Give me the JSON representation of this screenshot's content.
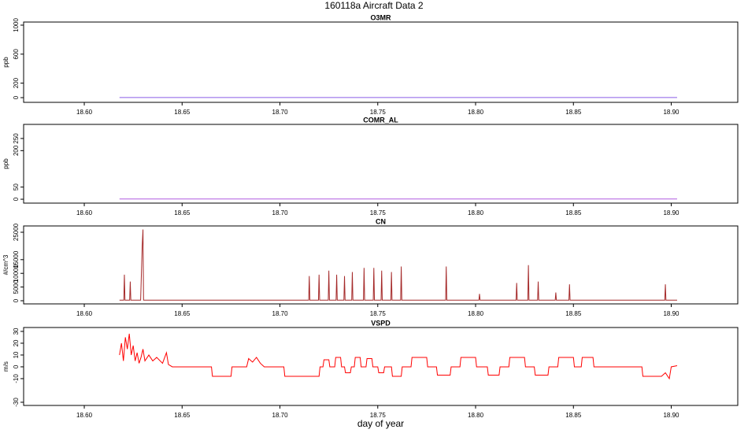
{
  "title": "160118a   Aircraft Data 2",
  "chart_data": [
    {
      "type": "line",
      "title": "O3MR",
      "ylabel": "ppb",
      "color": "#8a5ce6",
      "xlim": [
        18.569,
        18.934
      ],
      "xticks": [
        {
          "value": 18.6,
          "label": "18.60"
        },
        18.65,
        {
          "value": 18.7,
          "label": "18.70"
        },
        18.75,
        {
          "value": 18.8,
          "label": "18.80"
        },
        18.85,
        {
          "value": 18.9,
          "label": "18.90"
        }
      ],
      "ylim": [
        -65,
        1043
      ],
      "yticks": [
        0,
        200,
        600,
        1000
      ],
      "x": [
        18.618,
        18.903
      ],
      "values": [
        2,
        2
      ]
    },
    {
      "type": "line",
      "title": "COMR_AL",
      "ylabel": "ppb",
      "color": "#b05ce0",
      "xlim": [
        18.569,
        18.934
      ],
      "xticks": [
        {
          "value": 18.6,
          "label": "18.60"
        },
        18.65,
        {
          "value": 18.7,
          "label": "18.70"
        },
        18.75,
        {
          "value": 18.8,
          "label": "18.80"
        },
        18.85,
        {
          "value": 18.9,
          "label": "18.90"
        }
      ],
      "ylim": [
        -16,
        308
      ],
      "yticks": [
        0,
        50,
        200,
        250
      ],
      "x": [
        18.618,
        18.903
      ],
      "values": [
        1,
        1
      ]
    },
    {
      "type": "line",
      "title": "CN",
      "ylabel": "#/cm^3",
      "color": "#a52a2a",
      "xlim": [
        18.569,
        18.934
      ],
      "xticks": [
        {
          "value": 18.6,
          "label": "18.60"
        },
        18.65,
        {
          "value": 18.7,
          "label": "18.70"
        },
        18.75,
        {
          "value": 18.8,
          "label": "18.80"
        },
        18.85,
        {
          "value": 18.9,
          "label": "18.90"
        }
      ],
      "ylim": [
        -1150,
        27300
      ],
      "yticks": [
        0,
        5000,
        10000,
        15000,
        25000
      ],
      "x": [
        18.618,
        18.6202,
        18.6205,
        18.6208,
        18.6232,
        18.6235,
        18.6238,
        18.6288,
        18.6292,
        18.6296,
        18.63,
        18.6303,
        18.7147,
        18.715,
        18.7153,
        18.7197,
        18.72,
        18.7203,
        18.7247,
        18.725,
        18.7253,
        18.7287,
        18.729,
        18.7293,
        18.7327,
        18.733,
        18.7333,
        18.7367,
        18.737,
        18.7373,
        18.7427,
        18.743,
        18.7433,
        18.7477,
        18.748,
        18.7483,
        18.7517,
        18.752,
        18.7523,
        18.7567,
        18.757,
        18.7573,
        18.7617,
        18.762,
        18.7623,
        18.7847,
        18.785,
        18.7853,
        18.8017,
        18.802,
        18.8023,
        18.8207,
        18.821,
        18.8213,
        18.8267,
        18.827,
        18.8273,
        18.8317,
        18.832,
        18.8323,
        18.8407,
        18.841,
        18.8413,
        18.8477,
        18.848,
        18.8483,
        18.8967,
        18.897,
        18.8973,
        18.903
      ],
      "values": [
        200,
        200,
        9500,
        200,
        200,
        7000,
        200,
        200,
        10000,
        20000,
        26000,
        200,
        200,
        9000,
        200,
        200,
        9500,
        200,
        200,
        11000,
        200,
        200,
        9500,
        200,
        200,
        9000,
        200,
        200,
        10500,
        200,
        200,
        12000,
        200,
        200,
        12000,
        200,
        200,
        11000,
        200,
        200,
        10500,
        200,
        200,
        12500,
        200,
        200,
        12500,
        200,
        200,
        2500,
        200,
        200,
        6500,
        200,
        200,
        13000,
        200,
        200,
        7000,
        200,
        200,
        3000,
        200,
        200,
        6000,
        200,
        200,
        6000,
        200,
        200
      ]
    },
    {
      "type": "line",
      "title": "VSPD",
      "ylabel": "m/s",
      "xlabel": "day of year",
      "color": "#ff0000",
      "xlim": [
        18.569,
        18.934
      ],
      "xticks": [
        {
          "value": 18.6,
          "label": "18.60"
        },
        18.65,
        {
          "value": 18.7,
          "label": "18.70"
        },
        18.75,
        {
          "value": 18.8,
          "label": "18.80"
        },
        18.85,
        {
          "value": 18.9,
          "label": "18.90"
        }
      ],
      "ylim": [
        -32.7,
        33.3
      ],
      "yticks": [
        -30,
        -10,
        0,
        10,
        20,
        30
      ],
      "x": [
        18.618,
        18.619,
        18.62,
        18.621,
        18.622,
        18.623,
        18.624,
        18.625,
        18.626,
        18.627,
        18.628,
        18.629,
        18.63,
        18.631,
        18.633,
        18.635,
        18.637,
        18.64,
        18.642,
        18.643,
        18.645,
        18.665,
        18.6655,
        18.675,
        18.6755,
        18.683,
        18.684,
        18.686,
        18.688,
        18.69,
        18.692,
        18.702,
        18.7025,
        18.72,
        18.7205,
        18.722,
        18.7225,
        18.725,
        18.7255,
        18.728,
        18.7285,
        18.731,
        18.7315,
        18.733,
        18.7335,
        18.736,
        18.7365,
        18.738,
        18.7385,
        18.741,
        18.7415,
        18.744,
        18.7445,
        18.747,
        18.7475,
        18.75,
        18.7505,
        18.753,
        18.7535,
        18.757,
        18.7575,
        18.762,
        18.7625,
        18.767,
        18.7675,
        18.775,
        18.7755,
        18.78,
        18.7805,
        18.787,
        18.7875,
        18.792,
        18.7925,
        18.8,
        18.8005,
        18.806,
        18.8065,
        18.812,
        18.8125,
        18.817,
        18.8175,
        18.825,
        18.8255,
        18.83,
        18.8305,
        18.837,
        18.8375,
        18.842,
        18.8425,
        18.85,
        18.8505,
        18.854,
        18.8545,
        18.86,
        18.8605,
        18.885,
        18.8855,
        18.895,
        18.897,
        18.899,
        18.9,
        18.903
      ],
      "values": [
        10,
        20,
        5,
        25,
        15,
        28,
        10,
        18,
        5,
        12,
        3,
        8,
        15,
        5,
        10,
        5,
        8,
        3,
        12,
        2,
        0,
        0,
        -8,
        -8,
        0,
        0,
        7,
        4,
        8,
        3,
        0,
        0,
        -8,
        -8,
        0,
        0,
        6,
        6,
        0,
        0,
        8,
        8,
        0,
        0,
        -5,
        -5,
        0,
        0,
        8,
        8,
        0,
        0,
        7,
        7,
        0,
        0,
        -5,
        -5,
        0,
        0,
        -8,
        -8,
        0,
        0,
        8,
        8,
        0,
        0,
        -7,
        -7,
        0,
        0,
        8,
        8,
        0,
        0,
        -7,
        -7,
        0,
        0,
        8,
        8,
        0,
        0,
        -7,
        -7,
        0,
        0,
        8,
        8,
        0,
        0,
        8,
        8,
        0,
        0,
        -8,
        -8,
        -5,
        -10,
        0,
        1
      ]
    }
  ]
}
